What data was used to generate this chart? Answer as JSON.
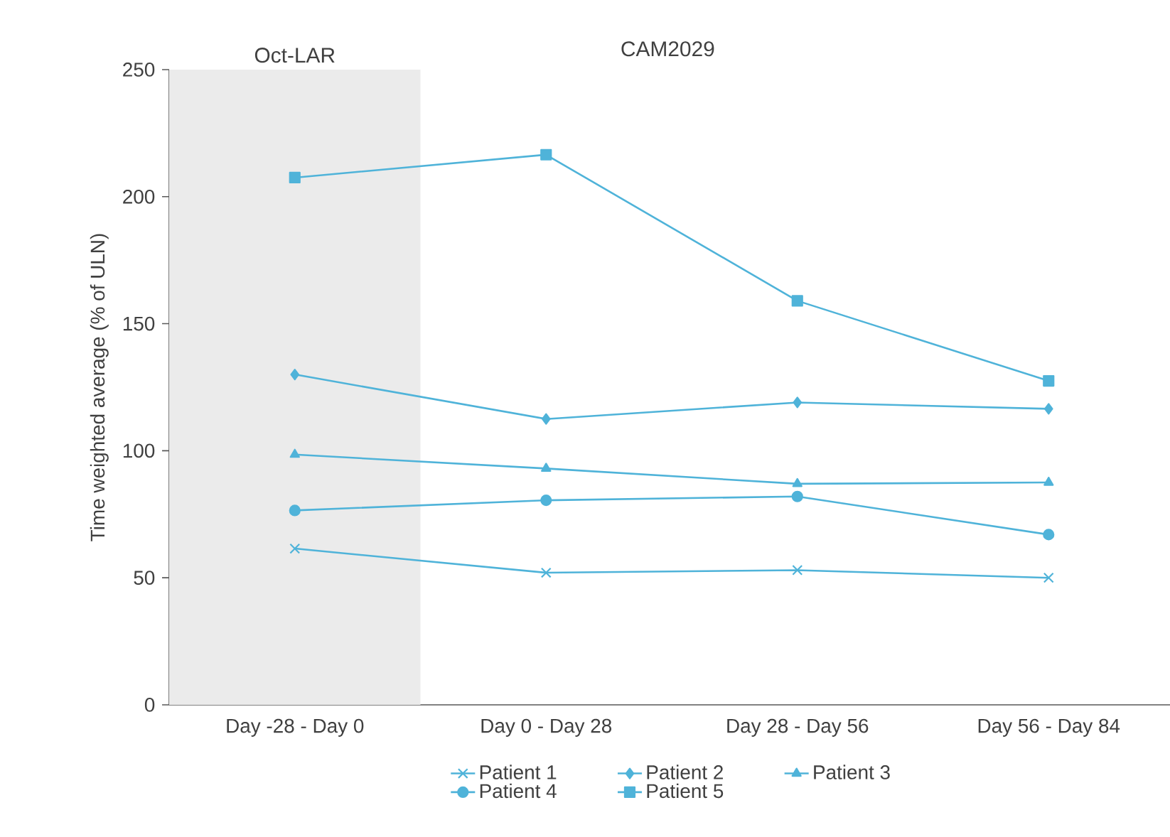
{
  "chart_data": {
    "type": "line",
    "ylabel": "Time weighted average (% of ULN)",
    "categories": [
      "Day -28 - Day 0",
      "Day 0 - Day 28",
      "Day 28 - Day 56",
      "Day 56 - Day 84"
    ],
    "ylim": [
      0,
      250
    ],
    "yticks": [
      0,
      50,
      100,
      150,
      200,
      250
    ],
    "grid": false,
    "legend": "bottom",
    "line_style": "solid",
    "annotations": [
      "CAM2029"
    ],
    "bands": [
      {
        "axis": "x",
        "from": "Day -28 - Day 0",
        "to": "Day -28 - Day 0",
        "color": "#ebebeb",
        "label": "Oct-LAR"
      }
    ],
    "series": [
      {
        "name": "Patient 1",
        "color": "#4fb3d9",
        "marker": "cross",
        "values": [
          61.5,
          52,
          53,
          50
        ]
      },
      {
        "name": "Patient 2",
        "color": "#4fb3d9",
        "marker": "diamond",
        "values": [
          130,
          112.5,
          119,
          116.5
        ]
      },
      {
        "name": "Patient 3",
        "color": "#4fb3d9",
        "marker": "triangle",
        "values": [
          98.5,
          93,
          87,
          87.5
        ]
      },
      {
        "name": "Patient 4",
        "color": "#4fb3d9",
        "marker": "circle",
        "values": [
          76.5,
          80.5,
          82,
          67
        ]
      },
      {
        "name": "Patient 5",
        "color": "#4fb3d9",
        "marker": "square",
        "values": [
          207.5,
          216.5,
          159,
          127.5
        ]
      }
    ]
  }
}
